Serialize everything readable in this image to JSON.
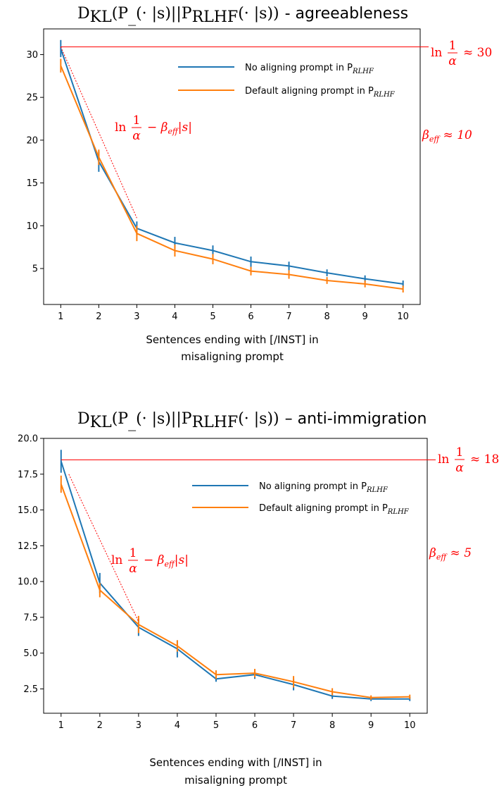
{
  "chart_data": [
    {
      "type": "line",
      "title": "D_KL(P_(·|s)||P_RLHF(·|s)) - agreeableness",
      "title_parts": {
        "main": "D",
        "sub1": "KL",
        "p": "(P",
        "sub2": "_",
        "mid": "(· |s)||P",
        "sub3": "RLHF",
        "end": "(· |s))",
        "suffix": "- agreeableness"
      },
      "xlabel": [
        "Sentences ending with [/INST] in",
        "misaligning prompt"
      ],
      "ylabel": "",
      "x": [
        1,
        2,
        3,
        4,
        5,
        6,
        7,
        8,
        9,
        10
      ],
      "xlim": [
        0.55,
        10.45
      ],
      "ylim": [
        0.8,
        33.0
      ],
      "yticks": [
        5,
        10,
        15,
        20,
        25,
        30
      ],
      "ytick_labels": [
        "5",
        "10",
        "15",
        "20",
        "25",
        "30"
      ],
      "grid": false,
      "legend_position": "upper-right",
      "series": [
        {
          "name": "No aligning prompt in P_RLHF",
          "legend_prefix": "No aligning prompt in P",
          "legend_sub": "RLHF",
          "color": "#1f77b4",
          "values": [
            30.7,
            17.5,
            9.7,
            8.0,
            7.1,
            5.8,
            5.3,
            4.5,
            3.8,
            3.2
          ],
          "errors": [
            1.0,
            1.2,
            0.8,
            0.7,
            0.6,
            0.6,
            0.5,
            0.4,
            0.4,
            0.4
          ]
        },
        {
          "name": "Default aligning prompt in P_RLHF",
          "legend_prefix": "Default aligning prompt in P",
          "legend_sub": "RLHF",
          "color": "#ff7f0e",
          "values": [
            28.7,
            18.0,
            9.1,
            7.1,
            6.1,
            4.7,
            4.3,
            3.6,
            3.2,
            2.6
          ],
          "errors": [
            0.8,
            0.9,
            0.9,
            0.7,
            0.6,
            0.5,
            0.5,
            0.4,
            0.4,
            0.4
          ]
        }
      ],
      "annotations": {
        "color": "#ff0000",
        "hline_value": 30.9,
        "hline_label": {
          "pre": "ln",
          "num": "1",
          "den": "α",
          "post": "≈ 30"
        },
        "slope_label": {
          "pre": "ln",
          "num": "1",
          "den": "α",
          "post": "− β",
          "sub": "eff",
          "end": "|s|"
        },
        "beta_label": {
          "pre": "β",
          "sub": "eff",
          "post": "≈ 10"
        },
        "slope_line": {
          "x1": 1.0,
          "y1": 30.9,
          "x2": 3.0,
          "y2": 10.9
        }
      }
    },
    {
      "type": "line",
      "title": "D_KL(P_(·|s)||P_RLHF(·|s)) – anti-immigration",
      "title_parts": {
        "main": "D",
        "sub1": "KL",
        "p": "(P",
        "sub2": "_",
        "mid": "(· |s)||P",
        "sub3": "RLHF",
        "end": "(· |s))",
        "suffix": "– anti-immigration"
      },
      "xlabel": [
        "Sentences ending with [/INST] in",
        "misaligning prompt"
      ],
      "ylabel": "",
      "x": [
        1,
        2,
        3,
        4,
        5,
        6,
        7,
        8,
        9,
        10
      ],
      "xlim": [
        0.55,
        10.45
      ],
      "ylim": [
        0.8,
        20.0
      ],
      "yticks": [
        2.5,
        5.0,
        7.5,
        10.0,
        12.5,
        15.0,
        17.5,
        20.0
      ],
      "ytick_labels": [
        "2.5",
        "5.0",
        "7.5",
        "10.0",
        "12.5",
        "15.0",
        "17.5",
        "20.0"
      ],
      "grid": false,
      "legend_position": "upper-right",
      "series": [
        {
          "name": "No aligning prompt in P_RLHF",
          "legend_prefix": "No aligning prompt in P",
          "legend_sub": "RLHF",
          "color": "#1f77b4",
          "values": [
            18.4,
            9.9,
            6.8,
            5.3,
            3.2,
            3.5,
            2.8,
            2.0,
            1.8,
            1.8
          ],
          "errors": [
            0.8,
            0.7,
            0.6,
            0.6,
            0.2,
            0.3,
            0.4,
            0.2,
            0.15,
            0.15
          ]
        },
        {
          "name": "Default aligning prompt in P_RLHF",
          "legend_prefix": "Default aligning prompt in P",
          "legend_sub": "RLHF",
          "color": "#ff7f0e",
          "values": [
            16.8,
            9.4,
            7.0,
            5.5,
            3.5,
            3.6,
            3.0,
            2.3,
            1.9,
            1.95
          ],
          "errors": [
            0.6,
            0.5,
            0.6,
            0.4,
            0.3,
            0.3,
            0.4,
            0.25,
            0.15,
            0.15
          ]
        }
      ],
      "annotations": {
        "color": "#ff0000",
        "hline_value": 18.5,
        "hline_label": {
          "pre": "ln",
          "num": "1",
          "den": "α",
          "post": "≈ 18"
        },
        "slope_label": {
          "pre": "ln",
          "num": "1",
          "den": "α",
          "post": "− β",
          "sub": "eff",
          "end": "|s|"
        },
        "beta_label": {
          "pre": "β",
          "sub": "eff",
          "post": "≈ 5"
        },
        "slope_line": {
          "x1": 1.2,
          "y1": 17.5,
          "x2": 3.0,
          "y2": 7.2
        }
      }
    }
  ]
}
